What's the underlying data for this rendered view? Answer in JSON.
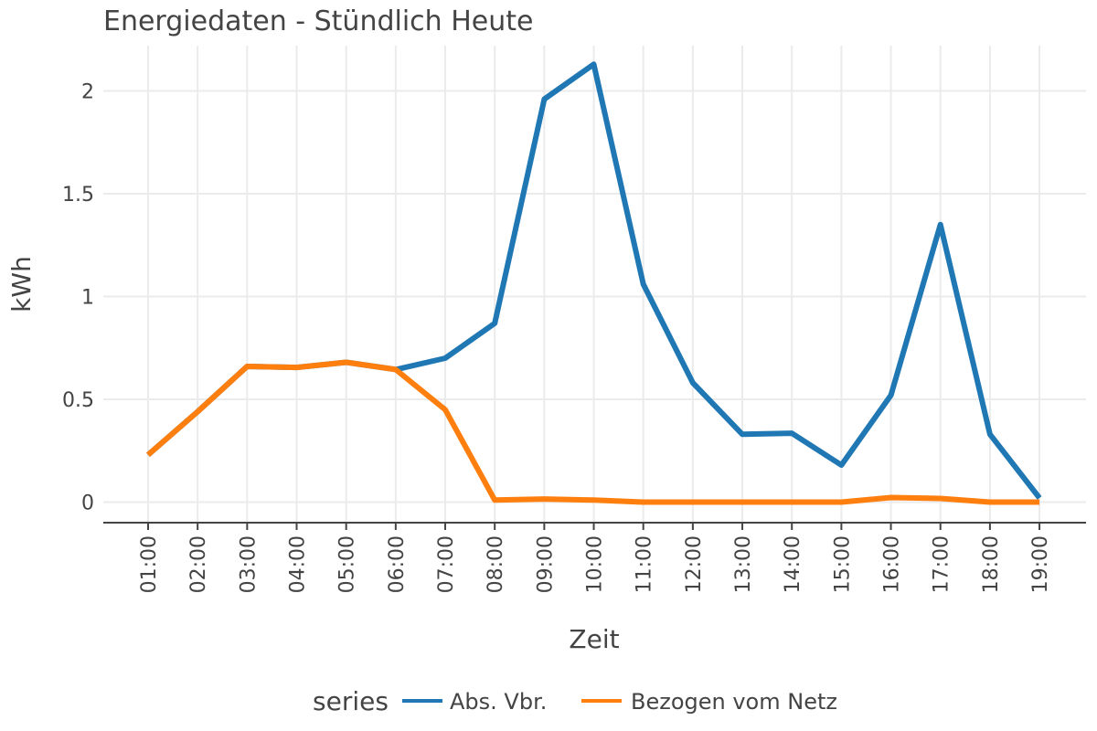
{
  "chart_data": {
    "type": "line",
    "title": "Energiedaten - Stündlich Heute",
    "xlabel": "Zeit",
    "ylabel": "kWh",
    "categories": [
      "01:00",
      "02:00",
      "03:00",
      "04:00",
      "05:00",
      "06:00",
      "07:00",
      "08:00",
      "09:00",
      "10:00",
      "11:00",
      "12:00",
      "13:00",
      "14:00",
      "15:00",
      "16:00",
      "17:00",
      "18:00",
      "19:00"
    ],
    "ylim": [
      -0.1,
      2.22
    ],
    "yticks": [
      0,
      0.5,
      1,
      1.5,
      2
    ],
    "ytick_labels": [
      "0",
      "0.5",
      "1",
      "1.5",
      "2"
    ],
    "grid": true,
    "legend": {
      "title": "series",
      "position": "bottom"
    },
    "series": [
      {
        "name": "Abs. Vbr.",
        "color": "#1f77b4",
        "values": [
          0.23,
          0.44,
          0.66,
          0.655,
          0.68,
          0.645,
          0.7,
          0.87,
          1.96,
          2.13,
          1.06,
          0.58,
          0.33,
          0.335,
          0.18,
          0.52,
          1.35,
          0.33,
          0.02
        ]
      },
      {
        "name": "Bezogen vom Netz",
        "color": "#ff7f0e",
        "values": [
          0.23,
          0.44,
          0.66,
          0.655,
          0.68,
          0.645,
          0.45,
          0.01,
          0.015,
          0.01,
          0.0,
          0.0,
          0.0,
          0.0,
          0.0,
          0.022,
          0.018,
          0.0,
          0.0
        ]
      }
    ]
  }
}
